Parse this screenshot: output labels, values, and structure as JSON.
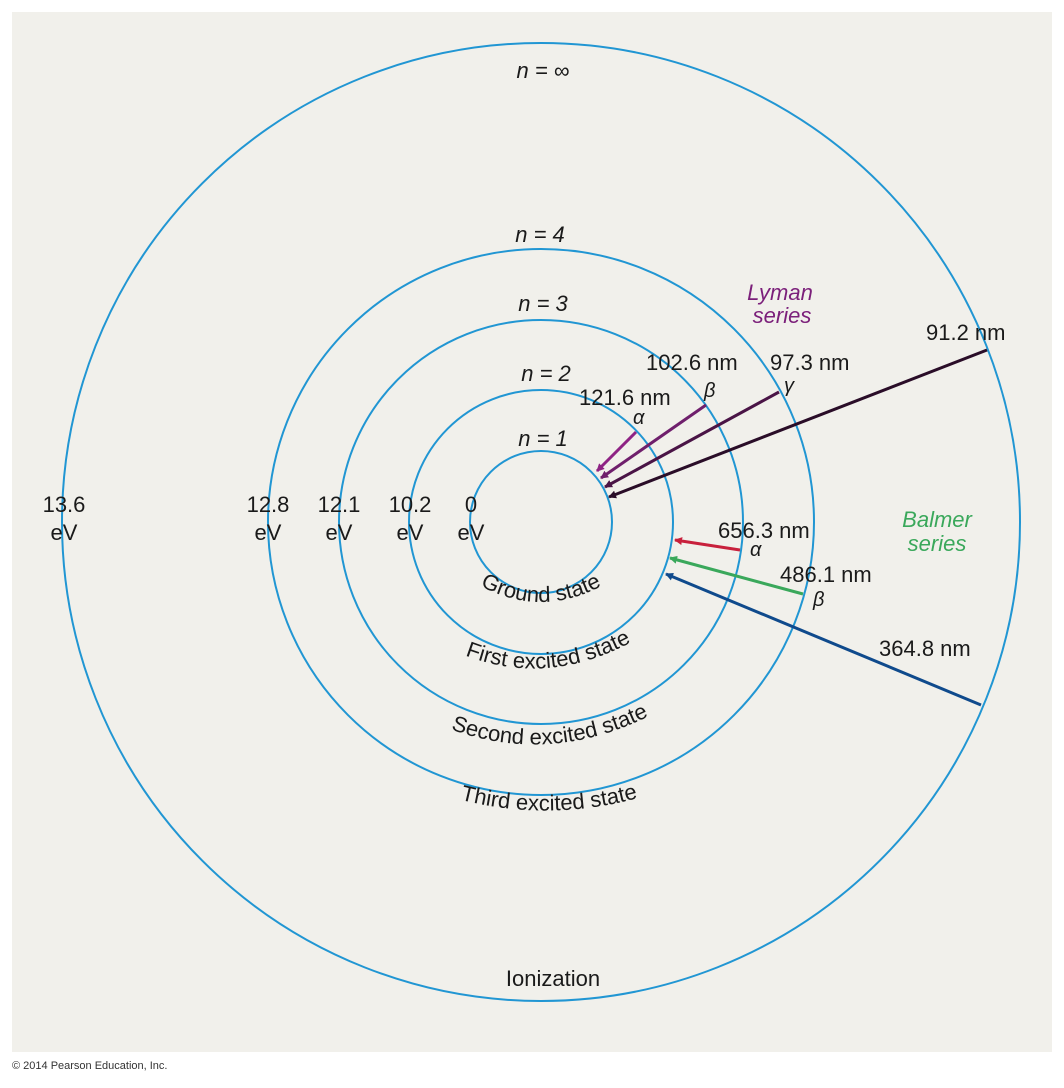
{
  "colors": {
    "panel": "#f1f0eb",
    "orbit": "#2196d3",
    "text": "#1a1a1a",
    "lyman_label": "#7b1f7a",
    "balmer_label": "#3aa85b",
    "lyman_alpha": "#8e2384",
    "lyman_beta": "#6f1f6c",
    "lyman_gamma": "#4a1446",
    "lyman_limit": "#2a0d28",
    "balmer_alpha": "#c8203c",
    "balmer_beta": "#3aa85b",
    "balmer_limit": "#0f4a8c"
  },
  "levels": [
    {
      "n": "n = 1",
      "energy_value": "0",
      "energy_unit": "eV",
      "state": "Ground state"
    },
    {
      "n": "n = 2",
      "energy_value": "10.2",
      "energy_unit": "eV",
      "state": "First excited state"
    },
    {
      "n": "n = 3",
      "energy_value": "12.1",
      "energy_unit": "eV",
      "state": "Second excited state"
    },
    {
      "n": "n = 4",
      "energy_value": "12.8",
      "energy_unit": "eV",
      "state": "Third excited state"
    },
    {
      "n": "n = ∞",
      "energy_value": "13.6",
      "energy_unit": "eV",
      "state": "Ionization"
    }
  ],
  "lyman": {
    "title_line1": "Lyman",
    "title_line2": "series",
    "transitions": [
      {
        "wavelength": "121.6 nm",
        "greek": "α"
      },
      {
        "wavelength": "102.6 nm",
        "greek": "β"
      },
      {
        "wavelength": "97.3 nm",
        "greek": "γ"
      },
      {
        "wavelength": "91.2 nm",
        "greek": ""
      }
    ]
  },
  "balmer": {
    "title_line1": "Balmer",
    "title_line2": "series",
    "transitions": [
      {
        "wavelength": "656.3 nm",
        "greek": "α"
      },
      {
        "wavelength": "486.1 nm",
        "greek": "β"
      },
      {
        "wavelength": "364.8 nm",
        "greek": ""
      }
    ]
  },
  "copyright": "© 2014 Pearson Education, Inc."
}
